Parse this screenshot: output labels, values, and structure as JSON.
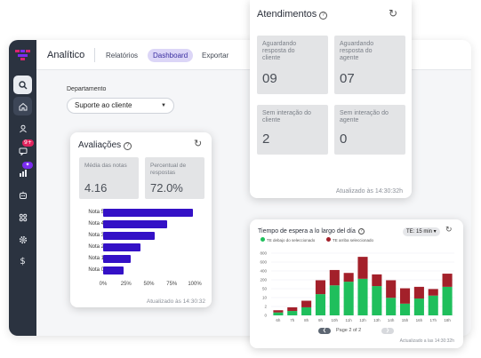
{
  "app": {
    "title": "Analítico",
    "tabs": [
      {
        "label": "Relatórios",
        "active": false
      },
      {
        "label": "Dashboard",
        "active": true
      },
      {
        "label": "Exportar",
        "active": false
      }
    ],
    "department": {
      "label": "Departamento",
      "value": "Suporte ao cliente"
    },
    "sidebar_badges": {
      "chat": "9+",
      "ai": "✦"
    },
    "colors": {
      "accent": "#3411c6",
      "sidebar": "#2b3340",
      "green": "#1fbf5c",
      "red": "#a3202a"
    }
  },
  "atendimentos": {
    "title": "Atendimentos",
    "stats": [
      {
        "label": "Aguardando resposta do cliente",
        "value": "09"
      },
      {
        "label": "Aguardando resposta do agente",
        "value": "07"
      },
      {
        "label": "Sem interação do cliente",
        "value": "2"
      },
      {
        "label": "Sem interação do agente",
        "value": "0"
      }
    ],
    "updated": "Atualizado às 14:30:32h"
  },
  "avaliacoes": {
    "title": "Avaliações",
    "stats": [
      {
        "label": "Média das notas",
        "value": "4.16"
      },
      {
        "label": "Percentual de respostas",
        "value": "72.0%"
      }
    ],
    "updated": "Atualizado às 14:30:32",
    "chart_data": {
      "type": "bar",
      "orientation": "horizontal",
      "categories": [
        "Nota 5",
        "Nota 4",
        "Nota 3",
        "Nota 2",
        "Nota 1",
        "Nota 0"
      ],
      "values": [
        98,
        70,
        56,
        41,
        30,
        22
      ],
      "xlim": [
        0,
        100
      ],
      "xticks": [
        "0%",
        "25%",
        "50%",
        "75%",
        "100%"
      ],
      "color": "#3411c6"
    }
  },
  "espera": {
    "title": "Tiempo de espera a lo largo del día",
    "te_select": "TE: 15 min",
    "pager": "Page 2 of 2",
    "updated": "Actualizado a las 14:30:32h",
    "chart_data": {
      "type": "bar",
      "stacked": true,
      "categories": [
        "6h",
        "7h",
        "8h",
        "9h",
        "10h",
        "11h",
        "12h",
        "13h",
        "14h",
        "15h",
        "16h",
        "17h",
        "18h"
      ],
      "series": [
        {
          "name": "TE debajo do seleccionado",
          "color": "#1fbf5c",
          "values": [
            40,
            60,
            110,
            290,
            410,
            460,
            500,
            400,
            240,
            160,
            230,
            270,
            390
          ]
        },
        {
          "name": "TE arriba seleccionado",
          "color": "#a3202a",
          "values": [
            30,
            50,
            90,
            190,
            210,
            120,
            300,
            160,
            240,
            210,
            160,
            90,
            180
          ]
        }
      ],
      "yticks": [
        "0",
        "2",
        "10",
        "50",
        "200",
        "400",
        "600",
        "800"
      ],
      "ylim": [
        0,
        850
      ]
    }
  }
}
